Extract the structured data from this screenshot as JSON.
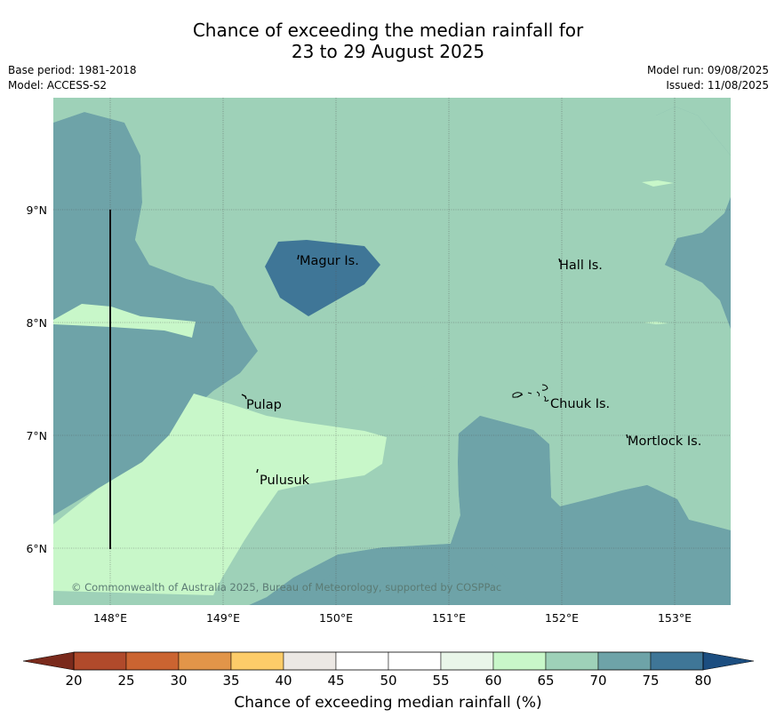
{
  "title": {
    "line1": "Chance of exceeding the median rainfall for",
    "line2": "23 to 29 August 2025"
  },
  "meta": {
    "base_period": "Base period: 1981-2018",
    "model": "Model: ACCESS-S2",
    "model_run": "Model run: 09/08/2025",
    "issued": "Issued: 11/08/2025"
  },
  "map": {
    "lon_ticks": [
      "148°E",
      "149°E",
      "150°E",
      "151°E",
      "152°E",
      "153°E"
    ],
    "lat_ticks": [
      "9°N",
      "8°N",
      "7°N",
      "6°N"
    ],
    "places": {
      "magur": "Magur Is.",
      "hall": "Hall Is.",
      "pulap": "Pulap",
      "chuuk": "Chuuk Is.",
      "mortlock": "Mortlock Is.",
      "pulusuk": "Pulusuk"
    },
    "copyright": "© Commonwealth of Australia 2025, Bureau of Meteorology, supported by COSPPac",
    "zone_colors": {
      "60-65": "#c8f7c9",
      "65-70": "#9ed1b8",
      "70-75": "#6ea3a8",
      "75-80": "#3f7697"
    }
  },
  "colorbar": {
    "label": "Chance of exceeding median rainfall (%)",
    "ticks": [
      "20",
      "25",
      "30",
      "35",
      "40",
      "45",
      "50",
      "55",
      "60",
      "65",
      "70",
      "75",
      "80"
    ],
    "under_color": "#7a2a1c",
    "over_color": "#1c4e80",
    "colors": [
      "#b04a2b",
      "#cb6431",
      "#e29549",
      "#fdcc69",
      "#ece8e4",
      "#ffffff",
      "#ffffff",
      "#e9f6e9",
      "#c8f7c9",
      "#9ed1b8",
      "#6ea3a8",
      "#3f7697"
    ]
  }
}
